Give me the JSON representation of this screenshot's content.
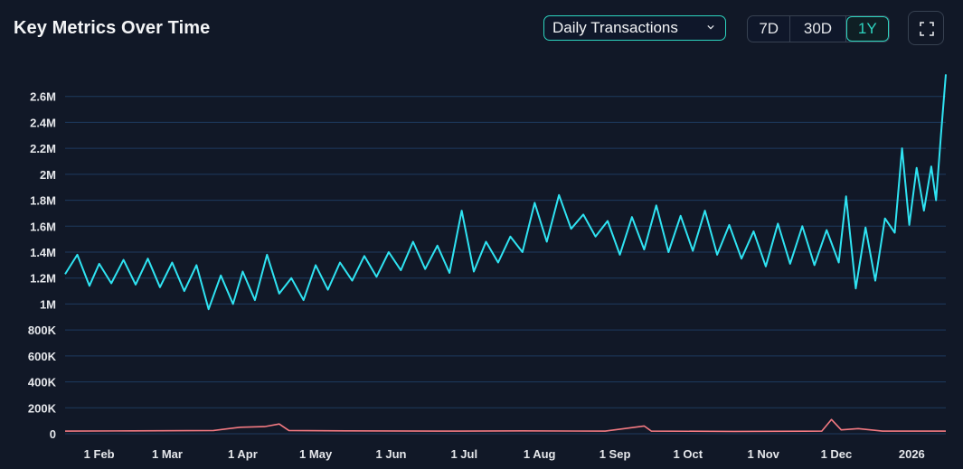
{
  "header": {
    "title": "Key Metrics Over Time",
    "metric_selector": "Daily Transactions",
    "ranges": [
      {
        "label": "7D",
        "active": false
      },
      {
        "label": "30D",
        "active": false
      },
      {
        "label": "1Y",
        "active": true
      }
    ],
    "expand_icon": "expand-icon"
  },
  "colors": {
    "background": "#111827",
    "primary_series": "#2fe3f2",
    "secondary_series": "#f47a82",
    "grid": "#1e3a5f",
    "accent": "#2dd4bf"
  },
  "chart_data": {
    "type": "line",
    "title": "",
    "xlabel": "",
    "ylabel": "",
    "ylim": [
      0,
      2800000
    ],
    "grid": true,
    "y_ticks": [
      0,
      200000,
      400000,
      600000,
      800000,
      1000000,
      1200000,
      1400000,
      1600000,
      1800000,
      2000000,
      2200000,
      2400000,
      2600000
    ],
    "y_tick_labels": [
      "0",
      "200K",
      "400K",
      "600K",
      "800K",
      "1M",
      "1.2M",
      "1.4M",
      "1.6M",
      "1.8M",
      "2M",
      "2.2M",
      "2.4M",
      "2.6M"
    ],
    "x_ticks": [
      {
        "label": "1 Feb",
        "date": "2025-02-01"
      },
      {
        "label": "1 Mar",
        "date": "2025-03-01"
      },
      {
        "label": "1 Apr",
        "date": "2025-04-01"
      },
      {
        "label": "1 May",
        "date": "2025-05-01"
      },
      {
        "label": "1 Jun",
        "date": "2025-06-01"
      },
      {
        "label": "1 Jul",
        "date": "2025-07-01"
      },
      {
        "label": "1 Aug",
        "date": "2025-08-01"
      },
      {
        "label": "1 Sep",
        "date": "2025-09-01"
      },
      {
        "label": "1 Oct",
        "date": "2025-10-01"
      },
      {
        "label": "1 Nov",
        "date": "2025-11-01"
      },
      {
        "label": "1 Dec",
        "date": "2025-12-01"
      },
      {
        "label": "2026",
        "date": "2026-01-01"
      }
    ],
    "x_start": "2025-01-18",
    "x_end": "2026-01-15",
    "series": [
      {
        "color": "#2fe3f2",
        "points": [
          [
            "2025-01-18",
            1230000
          ],
          [
            "2025-01-23",
            1380000
          ],
          [
            "2025-01-28",
            1140000
          ],
          [
            "2025-02-01",
            1310000
          ],
          [
            "2025-02-06",
            1160000
          ],
          [
            "2025-02-11",
            1340000
          ],
          [
            "2025-02-16",
            1150000
          ],
          [
            "2025-02-21",
            1350000
          ],
          [
            "2025-02-26",
            1130000
          ],
          [
            "2025-03-03",
            1320000
          ],
          [
            "2025-03-08",
            1100000
          ],
          [
            "2025-03-13",
            1300000
          ],
          [
            "2025-03-18",
            960000
          ],
          [
            "2025-03-23",
            1220000
          ],
          [
            "2025-03-28",
            1000000
          ],
          [
            "2025-04-01",
            1250000
          ],
          [
            "2025-04-06",
            1030000
          ],
          [
            "2025-04-11",
            1380000
          ],
          [
            "2025-04-16",
            1080000
          ],
          [
            "2025-04-21",
            1200000
          ],
          [
            "2025-04-26",
            1030000
          ],
          [
            "2025-05-01",
            1300000
          ],
          [
            "2025-05-06",
            1110000
          ],
          [
            "2025-05-11",
            1320000
          ],
          [
            "2025-05-16",
            1180000
          ],
          [
            "2025-05-21",
            1370000
          ],
          [
            "2025-05-26",
            1210000
          ],
          [
            "2025-05-31",
            1400000
          ],
          [
            "2025-06-05",
            1260000
          ],
          [
            "2025-06-10",
            1480000
          ],
          [
            "2025-06-15",
            1270000
          ],
          [
            "2025-06-20",
            1450000
          ],
          [
            "2025-06-25",
            1240000
          ],
          [
            "2025-06-30",
            1720000
          ],
          [
            "2025-07-05",
            1250000
          ],
          [
            "2025-07-10",
            1480000
          ],
          [
            "2025-07-15",
            1320000
          ],
          [
            "2025-07-20",
            1520000
          ],
          [
            "2025-07-25",
            1400000
          ],
          [
            "2025-07-30",
            1780000
          ],
          [
            "2025-08-04",
            1480000
          ],
          [
            "2025-08-09",
            1840000
          ],
          [
            "2025-08-14",
            1580000
          ],
          [
            "2025-08-19",
            1690000
          ],
          [
            "2025-08-24",
            1520000
          ],
          [
            "2025-08-29",
            1640000
          ],
          [
            "2025-09-03",
            1380000
          ],
          [
            "2025-09-08",
            1670000
          ],
          [
            "2025-09-13",
            1420000
          ],
          [
            "2025-09-18",
            1760000
          ],
          [
            "2025-09-23",
            1400000
          ],
          [
            "2025-09-28",
            1680000
          ],
          [
            "2025-10-03",
            1410000
          ],
          [
            "2025-10-08",
            1720000
          ],
          [
            "2025-10-13",
            1380000
          ],
          [
            "2025-10-18",
            1610000
          ],
          [
            "2025-10-23",
            1350000
          ],
          [
            "2025-10-28",
            1560000
          ],
          [
            "2025-11-02",
            1290000
          ],
          [
            "2025-11-07",
            1620000
          ],
          [
            "2025-11-12",
            1310000
          ],
          [
            "2025-11-17",
            1600000
          ],
          [
            "2025-11-22",
            1300000
          ],
          [
            "2025-11-27",
            1570000
          ],
          [
            "2025-12-02",
            1320000
          ],
          [
            "2025-12-05",
            1830000
          ],
          [
            "2025-12-09",
            1120000
          ],
          [
            "2025-12-13",
            1590000
          ],
          [
            "2025-12-17",
            1180000
          ],
          [
            "2025-12-21",
            1660000
          ],
          [
            "2025-12-25",
            1550000
          ],
          [
            "2025-12-28",
            2200000
          ],
          [
            "2025-12-31",
            1610000
          ],
          [
            "2026-01-03",
            2050000
          ],
          [
            "2026-01-06",
            1720000
          ],
          [
            "2026-01-09",
            2060000
          ],
          [
            "2026-01-11",
            1800000
          ],
          [
            "2026-01-13",
            2300000
          ],
          [
            "2026-01-15",
            2770000
          ]
        ]
      },
      {
        "color": "#f47a82",
        "points": [
          [
            "2025-01-18",
            20000
          ],
          [
            "2025-02-15",
            22000
          ],
          [
            "2025-03-20",
            25000
          ],
          [
            "2025-03-31",
            50000
          ],
          [
            "2025-04-10",
            55000
          ],
          [
            "2025-04-16",
            75000
          ],
          [
            "2025-04-20",
            25000
          ],
          [
            "2025-05-15",
            22000
          ],
          [
            "2025-06-20",
            20000
          ],
          [
            "2025-07-25",
            22000
          ],
          [
            "2025-08-28",
            20000
          ],
          [
            "2025-09-13",
            60000
          ],
          [
            "2025-09-16",
            20000
          ],
          [
            "2025-10-20",
            18000
          ],
          [
            "2025-11-25",
            20000
          ],
          [
            "2025-11-29",
            110000
          ],
          [
            "2025-12-03",
            30000
          ],
          [
            "2025-12-10",
            40000
          ],
          [
            "2025-12-20",
            20000
          ],
          [
            "2026-01-15",
            20000
          ]
        ]
      }
    ]
  }
}
